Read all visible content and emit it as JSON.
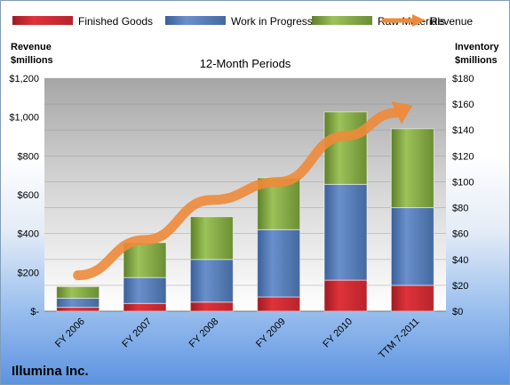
{
  "chart_data": {
    "type": "bar",
    "stacked": true,
    "title": "12-Month Periods",
    "company": "Illumina Inc.",
    "categories": [
      "FY 2006",
      "FY 2007",
      "FY 2008",
      "FY 2009",
      "FY 2010",
      "TTM 7-2011"
    ],
    "series": [
      {
        "name": "Finished Goods",
        "axis": "right",
        "color": "#e0323a",
        "values": [
          3,
          6,
          7,
          11,
          24,
          20
        ]
      },
      {
        "name": "Work in Progress",
        "axis": "right",
        "color": "#5b82c0",
        "values": [
          7,
          20,
          33,
          52,
          74,
          60
        ]
      },
      {
        "name": "Raw Materials",
        "axis": "right",
        "color": "#8cb34a",
        "values": [
          9,
          27,
          33,
          40,
          56,
          61
        ]
      },
      {
        "name": "Revenue",
        "axis": "left",
        "type": "line",
        "color": "#ee8a3a",
        "values": [
          185,
          367,
          573,
          666,
          903,
          1060
        ]
      }
    ],
    "left_axis": {
      "label_line1": "Revenue",
      "label_line2": "$millions",
      "range": [
        0,
        1200
      ],
      "ticks": [
        "$-",
        "$200",
        "$400",
        "$600",
        "$800",
        "$1,000",
        "$1,200"
      ]
    },
    "right_axis": {
      "label_line1": "Inventory",
      "label_line2": "$millions",
      "range": [
        0,
        180
      ],
      "ticks": [
        "$0",
        "$20",
        "$40",
        "$60",
        "$80",
        "$100",
        "$120",
        "$140",
        "$160",
        "$180"
      ]
    },
    "legend_position": "top",
    "grid": true
  }
}
